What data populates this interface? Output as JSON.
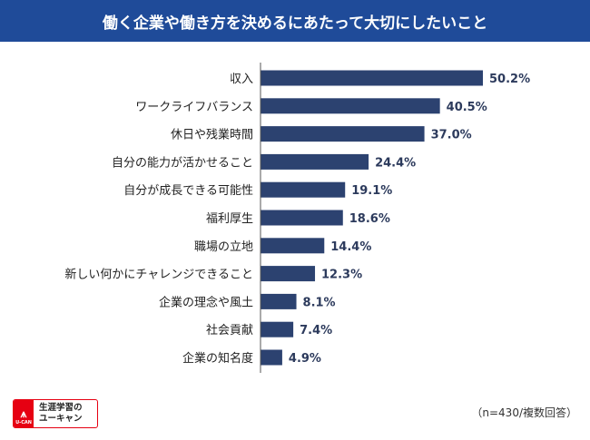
{
  "chart_data": {
    "type": "bar",
    "orientation": "horizontal",
    "title": "働く企業や働き方を決めるにあたって大切にしたいこと",
    "categories": [
      "収入",
      "ワークライフバランス",
      "休日や残業時間",
      "自分の能力が活かせること",
      "自分が成長できる可能性",
      "福利厚生",
      "職場の立地",
      "新しい何かにチャレンジできること",
      "企業の理念や風土",
      "社会貢献",
      "企業の知名度"
    ],
    "values": [
      50.2,
      40.5,
      37.0,
      24.4,
      19.1,
      18.6,
      14.4,
      12.3,
      8.1,
      7.4,
      4.9
    ],
    "labels": [
      "50.2%",
      "40.5%",
      "37.0%",
      "24.4%",
      "19.1%",
      "18.6%",
      "14.4%",
      "12.3%",
      "8.1%",
      "7.4%",
      "4.9%"
    ],
    "xlim": [
      0,
      60
    ],
    "bar_color": "#2c4270",
    "note": "（n=430/複数回答）"
  },
  "logo": {
    "line1": "生涯学習の",
    "line2": "ユーキャン",
    "mark": "U-CAN"
  }
}
